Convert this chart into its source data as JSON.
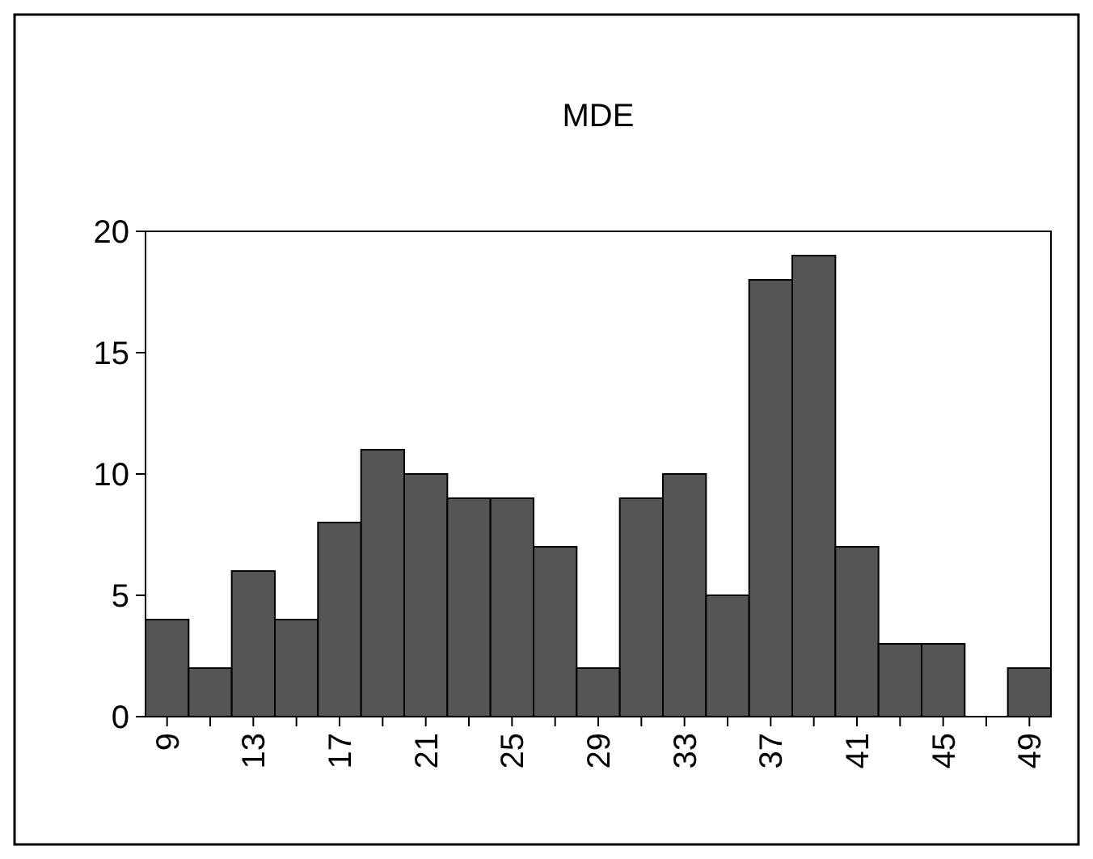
{
  "chart_data": {
    "type": "bar",
    "title": "MDE",
    "categories": [
      "9",
      null,
      "13",
      null,
      "17",
      null,
      "21",
      null,
      "25",
      null,
      "29",
      null,
      "33",
      null,
      "37",
      null,
      "41",
      null,
      "45",
      null,
      "49"
    ],
    "values": [
      4,
      2,
      6,
      4,
      8,
      11,
      10,
      9,
      9,
      7,
      2,
      9,
      10,
      5,
      18,
      19,
      7,
      3,
      3,
      0,
      2
    ],
    "color": "#555555",
    "ylim": [
      0,
      20
    ],
    "yticks": [
      0,
      5,
      10,
      15,
      20
    ],
    "grid": false
  }
}
